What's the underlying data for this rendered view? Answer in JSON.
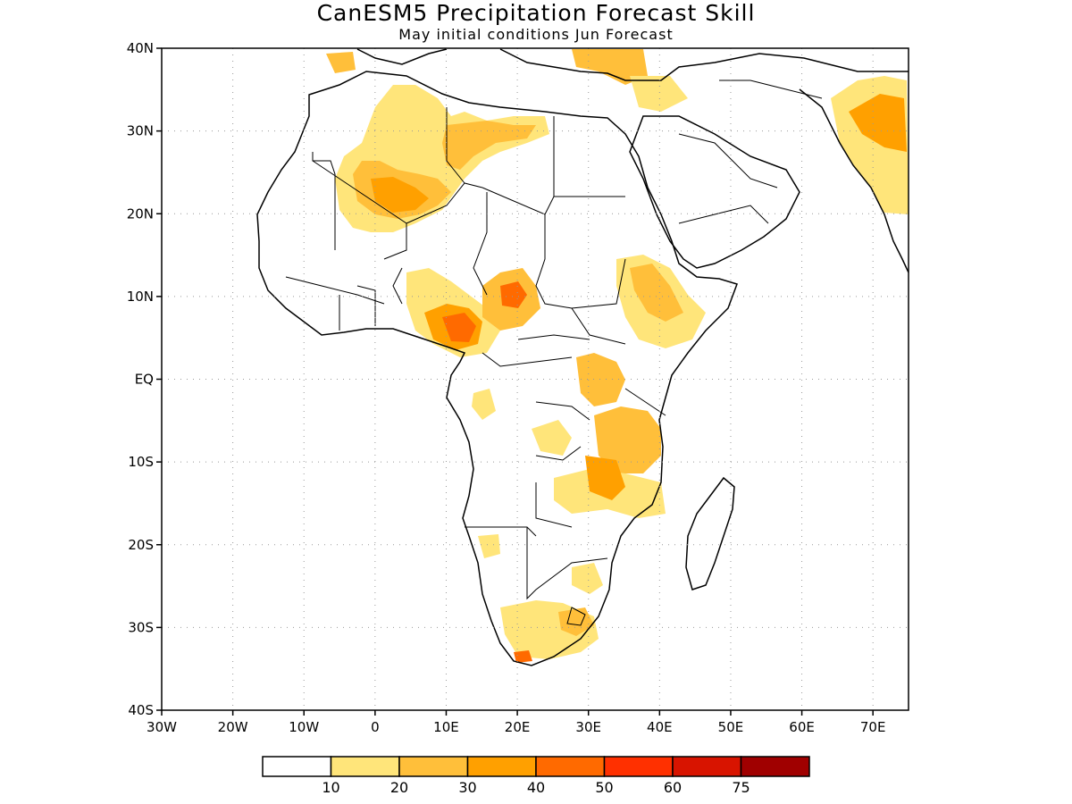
{
  "title": "CanESM5 Precipitation Forecast Skill",
  "subtitle": "May initial conditions  Jun Forecast",
  "map": {
    "lon_range": [
      -30,
      75
    ],
    "lat_range": [
      -40,
      40
    ],
    "lat_tick_labels": [
      "40N",
      "30N",
      "20N",
      "10N",
      "EQ",
      "10S",
      "20S",
      "30S",
      "40S"
    ],
    "lat_tick_values": [
      40,
      30,
      20,
      10,
      0,
      -10,
      -20,
      -30,
      -40
    ],
    "lon_tick_labels": [
      "30W",
      "20W",
      "10W",
      "0",
      "10E",
      "20E",
      "30E",
      "40E",
      "50E",
      "60E",
      "70E"
    ],
    "lon_tick_values": [
      -30,
      -20,
      -10,
      0,
      10,
      20,
      30,
      40,
      50,
      60,
      70
    ],
    "grid": true
  },
  "colorbar": {
    "colors": [
      "#ffffff",
      "#ffe57a",
      "#ffbf3a",
      "#ffa000",
      "#ff6a00",
      "#ff3000",
      "#d81400",
      "#a00000"
    ],
    "labels": [
      "10",
      "20",
      "30",
      "40",
      "50",
      "60",
      "75"
    ]
  },
  "colors": {
    "land_outline": "#000000",
    "grid": "#999999"
  }
}
